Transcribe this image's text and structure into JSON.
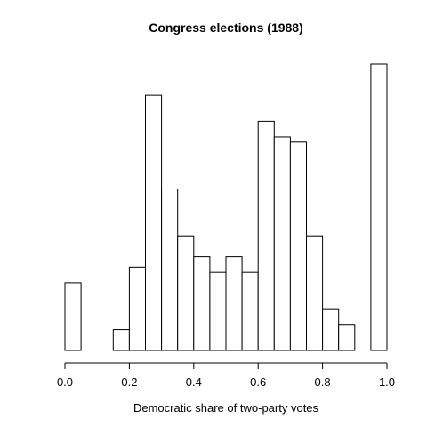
{
  "chart_data": {
    "type": "bar",
    "title": "Congress elections (1988)",
    "xlabel": "Democratic share of two-party votes",
    "ylabel": "",
    "bin_width": 0.05,
    "bins_start": [
      0.0,
      0.05,
      0.1,
      0.15,
      0.2,
      0.25,
      0.3,
      0.35,
      0.4,
      0.45,
      0.5,
      0.55,
      0.6,
      0.65,
      0.7,
      0.75,
      0.8,
      0.85,
      0.9,
      0.95
    ],
    "values": [
      13,
      0,
      0,
      4,
      16,
      49,
      31,
      22,
      18,
      15,
      18,
      15,
      44,
      41,
      40,
      22,
      8,
      5,
      0,
      55
    ],
    "xlim": [
      0,
      1
    ],
    "ylim": [
      0,
      55
    ],
    "xticks": [
      0.0,
      0.2,
      0.4,
      0.6,
      0.8,
      1.0
    ],
    "xtick_labels": [
      "0.0",
      "0.2",
      "0.4",
      "0.6",
      "0.8",
      "1.0"
    ],
    "bar_fill": "#ffffff",
    "bar_stroke": "#000000",
    "grid": false
  }
}
